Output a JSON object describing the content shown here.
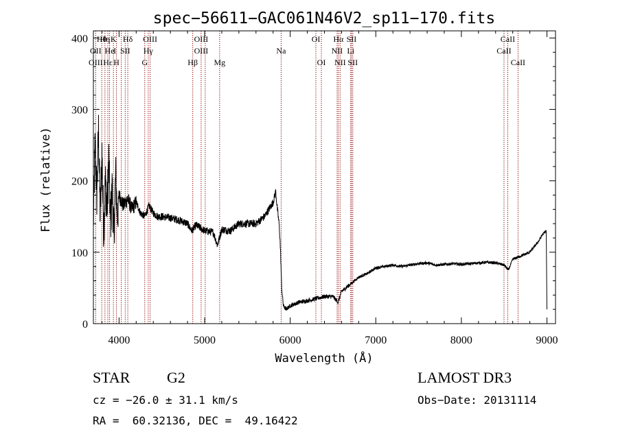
{
  "chart_data": {
    "type": "line",
    "title": "spec−56611−GAC061N46V2_sp11−170.fits",
    "xlabel": "Wavelength (Å)",
    "ylabel": "Flux (relative)",
    "xlim": [
      3700,
      9100
    ],
    "ylim": [
      0,
      410
    ],
    "xticks": [
      4000,
      5000,
      6000,
      7000,
      8000,
      9000
    ],
    "yticks": [
      0,
      100,
      200,
      300,
      400
    ],
    "grid": false,
    "series": [
      {
        "name": "spectrum",
        "x": [
          3700,
          3720,
          3740,
          3760,
          3780,
          3800,
          3820,
          3840,
          3860,
          3880,
          3900,
          3920,
          3940,
          3960,
          3980,
          4000,
          4050,
          4100,
          4150,
          4200,
          4250,
          4300,
          4350,
          4400,
          4450,
          4500,
          4600,
          4700,
          4800,
          4850,
          4900,
          5000,
          5100,
          5150,
          5200,
          5300,
          5400,
          5500,
          5600,
          5700,
          5750,
          5800,
          5830,
          5850,
          5870,
          5880,
          5890,
          5900,
          5920,
          5950,
          6000,
          6100,
          6200,
          6300,
          6400,
          6500,
          6560,
          6600,
          6700,
          6800,
          6900,
          7000,
          7100,
          7200,
          7300,
          7400,
          7500,
          7600,
          7700,
          7800,
          7900,
          8000,
          8100,
          8200,
          8300,
          8400,
          8500,
          8550,
          8600,
          8700,
          8800,
          8900,
          8950,
          8990,
          9000
        ],
        "y": [
          140,
          250,
          180,
          270,
          150,
          240,
          130,
          200,
          160,
          230,
          140,
          190,
          120,
          210,
          150,
          180,
          165,
          175,
          160,
          170,
          155,
          150,
          165,
          155,
          150,
          150,
          148,
          145,
          140,
          130,
          138,
          130,
          128,
          110,
          132,
          130,
          140,
          140,
          140,
          150,
          160,
          170,
          185,
          160,
          140,
          120,
          90,
          50,
          25,
          20,
          25,
          30,
          32,
          35,
          38,
          38,
          30,
          45,
          55,
          65,
          70,
          78,
          80,
          82,
          80,
          82,
          84,
          85,
          82,
          83,
          84,
          83,
          84,
          85,
          86,
          85,
          82,
          75,
          90,
          95,
          100,
          115,
          125,
          130,
          20
        ]
      }
    ],
    "lines": [
      {
        "wl": 3727,
        "color": "#8b0000"
      },
      {
        "wl": 3798,
        "color": "#8b0000"
      },
      {
        "wl": 3835,
        "color": "#8b0000"
      },
      {
        "wl": 3869,
        "color": "#8b0000"
      },
      {
        "wl": 3889,
        "color": "#8b0000"
      },
      {
        "wl": 3934,
        "color": "#8b0000"
      },
      {
        "wl": 3969,
        "color": "#8b0000"
      },
      {
        "wl": 4026,
        "color": "#8b0000"
      },
      {
        "wl": 4072,
        "color": "#8b0000"
      },
      {
        "wl": 4102,
        "color": "#8b0000"
      },
      {
        "wl": 4300,
        "color": "#8b0000"
      },
      {
        "wl": 4341,
        "color": "#8b0000"
      },
      {
        "wl": 4363,
        "color": "#8b0000"
      },
      {
        "wl": 4861,
        "color": "#8b0000"
      },
      {
        "wl": 4959,
        "color": "#8b0000"
      },
      {
        "wl": 5007,
        "color": "#8b0000"
      },
      {
        "wl": 5175,
        "color": "#8b0000"
      },
      {
        "wl": 5894,
        "color": "#8b0000"
      },
      {
        "wl": 6300,
        "color": "#8b0000"
      },
      {
        "wl": 6364,
        "color": "#8b0000"
      },
      {
        "wl": 6548,
        "color": "#8b0000"
      },
      {
        "wl": 6563,
        "color": "#8b0000"
      },
      {
        "wl": 6583,
        "color": "#8b0000"
      },
      {
        "wl": 6707,
        "color": "#8b0000"
      },
      {
        "wl": 6716,
        "color": "#8b0000"
      },
      {
        "wl": 6731,
        "color": "#8b0000"
      },
      {
        "wl": 8498,
        "color": "#8b0000"
      },
      {
        "wl": 8542,
        "color": "#8b0000"
      },
      {
        "wl": 8662,
        "color": "#8b0000"
      }
    ],
    "line_labels": [
      {
        "text": "Hθ",
        "wl": 3797,
        "row": 0
      },
      {
        "text": "Hη",
        "wl": 3835,
        "row": 0
      },
      {
        "text": "K",
        "wl": 3934,
        "row": 0
      },
      {
        "text": "Hδ",
        "wl": 4102,
        "row": 0
      },
      {
        "text": "OIII",
        "wl": 4363,
        "row": 0
      },
      {
        "text": "OIII",
        "wl": 4959,
        "row": 0
      },
      {
        "text": "OI",
        "wl": 6300,
        "row": 0
      },
      {
        "text": "Hα",
        "wl": 6563,
        "row": 0
      },
      {
        "text": "SII",
        "wl": 6716,
        "row": 0
      },
      {
        "text": "CaII",
        "wl": 8542,
        "row": 0
      },
      {
        "text": "OII",
        "wl": 3727,
        "row": 1
      },
      {
        "text": "He",
        "wl": 3889,
        "row": 1
      },
      {
        "text": "I",
        "wl": 3950,
        "row": 1
      },
      {
        "text": "SII",
        "wl": 4072,
        "row": 1
      },
      {
        "text": "Hγ",
        "wl": 4341,
        "row": 1
      },
      {
        "text": "OIII",
        "wl": 4959,
        "row": 1
      },
      {
        "text": "Na",
        "wl": 5894,
        "row": 1
      },
      {
        "text": "NII",
        "wl": 6548,
        "row": 1
      },
      {
        "text": "Li",
        "wl": 6707,
        "row": 1
      },
      {
        "text": "CaII",
        "wl": 8498,
        "row": 1
      },
      {
        "text": "OIII",
        "wl": 3727,
        "row": 2
      },
      {
        "text": "Hε",
        "wl": 3869,
        "row": 2
      },
      {
        "text": "H",
        "wl": 3969,
        "row": 2
      },
      {
        "text": "G",
        "wl": 4300,
        "row": 2
      },
      {
        "text": "Hβ",
        "wl": 4861,
        "row": 2
      },
      {
        "text": "Mg",
        "wl": 5175,
        "row": 2
      },
      {
        "text": "OI",
        "wl": 6364,
        "row": 2
      },
      {
        "text": "NII",
        "wl": 6583,
        "row": 2
      },
      {
        "text": "SII",
        "wl": 6731,
        "row": 2
      },
      {
        "text": "CaII",
        "wl": 8662,
        "row": 2
      }
    ]
  },
  "info": {
    "object_class": "STAR",
    "subclass": "G2",
    "survey": "LAMOST DR3",
    "redshift": "cz = −26.0 ± 31.1 km/s",
    "obs_date": "Obs−Date: 20131114",
    "coords": "RA =  60.32136, DEC =  49.16422"
  }
}
